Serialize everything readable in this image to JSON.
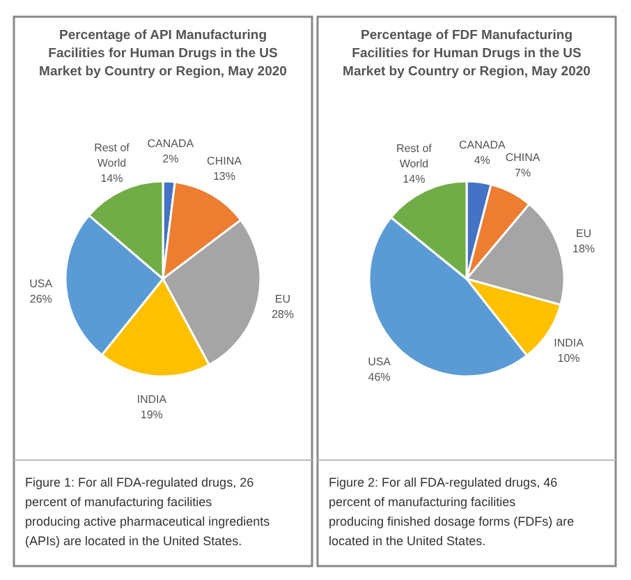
{
  "chart_data": [
    {
      "type": "pie",
      "title": "Percentage of API Manufacturing Facilities for Human Drugs in the US Market by Country or Region, May 2020",
      "categories": [
        "CANADA",
        "CHINA",
        "EU",
        "INDIA",
        "USA",
        "Rest of World"
      ],
      "values": [
        2,
        13,
        28,
        19,
        26,
        14
      ],
      "value_labels": [
        "2%",
        "13%",
        "28%",
        "19%",
        "26%",
        "14%"
      ],
      "colors": [
        "#4472c4",
        "#ed7d31",
        "#a5a5a5",
        "#ffc000",
        "#5b9bd5",
        "#70ad47"
      ],
      "annotations": [
        "Figure 1:  For all FDA-regulated drugs, 26 percent of manufacturing facilities producing active pharmaceutical  ingredients (APIs) are located in the United States."
      ]
    },
    {
      "type": "pie",
      "title": "Percentage of FDF Manufacturing Facilities for Human Drugs in the US Market by Country or Region, May 2020",
      "categories": [
        "CANADA",
        "CHINA",
        "EU",
        "INDIA",
        "USA",
        "Rest of World"
      ],
      "values": [
        4,
        7,
        18,
        10,
        46,
        14
      ],
      "value_labels": [
        "4%",
        "7%",
        "18%",
        "10%",
        "46%",
        "14%"
      ],
      "colors": [
        "#4472c4",
        "#ed7d31",
        "#a5a5a5",
        "#ffc000",
        "#5b9bd5",
        "#70ad47"
      ],
      "annotations": [
        "Figure 2: For all FDA-regulated drugs, 46 percent of manufacturing facilities producing finished dosage forms (FDFs) are located in the United States."
      ]
    }
  ]
}
